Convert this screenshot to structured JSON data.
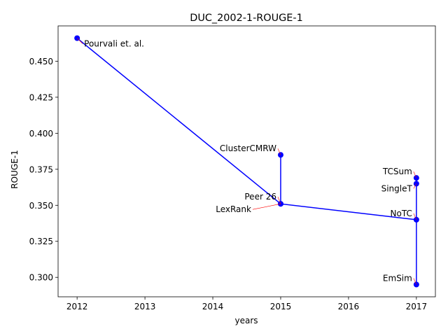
{
  "chart_data": {
    "type": "scatter",
    "title": "DUC_2002-1-ROUGE-1",
    "xlabel": "years",
    "ylabel": "ROUGE-1",
    "xlim": [
      2011.72,
      2017.28
    ],
    "ylim": [
      0.2865,
      0.4745
    ],
    "x_ticks": [
      2012,
      2013,
      2014,
      2015,
      2016,
      2017
    ],
    "y_ticks": [
      0.3,
      0.325,
      0.35,
      0.375,
      0.4,
      0.425,
      0.45
    ],
    "x_tick_labels": [
      "2012",
      "2013",
      "2014",
      "2015",
      "2016",
      "2017"
    ],
    "y_tick_labels": [
      "0.300",
      "0.325",
      "0.350",
      "0.375",
      "0.400",
      "0.425",
      "0.450"
    ],
    "grid": false,
    "line_color": "#0000ff",
    "marker_color": "#0000ff",
    "annotation_arrow_color": "#ff0000",
    "points": [
      {
        "label": "Pourvali et. al.",
        "x": 2012,
        "y": 0.466,
        "label_pos": "right-below"
      },
      {
        "label": "ClusterCMRW",
        "x": 2015,
        "y": 0.385,
        "label_pos": "left-above"
      },
      {
        "label": "Peer 26",
        "x": 2015,
        "y": 0.351,
        "label_pos": "left-above"
      },
      {
        "label": "LexRank",
        "x": 2015,
        "y": 0.351,
        "label_pos": "left-below"
      },
      {
        "label": "TCSum",
        "x": 2017,
        "y": 0.369,
        "label_pos": "left-above"
      },
      {
        "label": "SingleT",
        "x": 2017,
        "y": 0.365,
        "label_pos": "left-below"
      },
      {
        "label": "NoTC",
        "x": 2017,
        "y": 0.34,
        "label_pos": "left-above"
      },
      {
        "label": "EmSim",
        "x": 2017,
        "y": 0.295,
        "label_pos": "left-above"
      }
    ],
    "line_path": [
      {
        "x": 2012,
        "y": 0.466
      },
      {
        "x": 2015,
        "y": 0.351
      },
      {
        "x": 2015,
        "y": 0.385
      },
      {
        "x": 2015,
        "y": 0.351
      },
      {
        "x": 2017,
        "y": 0.34
      },
      {
        "x": 2017,
        "y": 0.369
      },
      {
        "x": 2017,
        "y": 0.295
      }
    ]
  }
}
